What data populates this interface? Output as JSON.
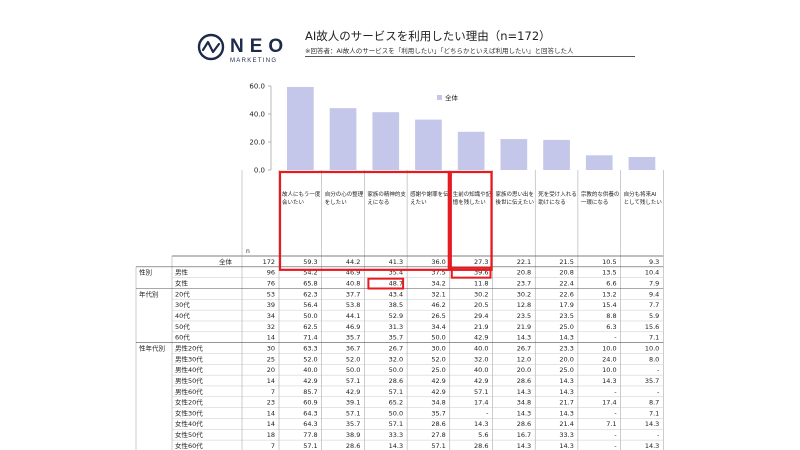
{
  "brand": {
    "name": "NEO",
    "sub": "MARKETING"
  },
  "header": {
    "title": "AI故人のサービスを利用したい理由（n=172）",
    "note": "※回答者：AI故人のサービスを「利用したい」「どちらかといえば利用したい」と回答した人"
  },
  "colors": {
    "bar": "#c5c7ea",
    "highlight": "#e8191f",
    "text": "#222222",
    "grid": "#999999"
  },
  "table_labels": {
    "n_header": "n"
  },
  "chart_data": {
    "type": "bar",
    "categories": [
      "故人にもう一度会いたい",
      "自分の心の整理をしたい",
      "家族の精神的支えになる",
      "感謝や謝罪を伝えたい",
      "生前の知識や記憶を残したい",
      "家族の思い出を後世に伝えたい",
      "死を受け入れる助けになる",
      "宗教的な供養の一環になる",
      "自分も将来AIとして残したい"
    ],
    "values": [
      59.3,
      44.2,
      41.3,
      36.0,
      27.3,
      22.1,
      21.5,
      10.5,
      9.3
    ],
    "legend": "全体",
    "legend_position": "top-right",
    "ylim": [
      0,
      60
    ],
    "yticks": [
      "60.0",
      "40.0",
      "20.0",
      "0.0"
    ],
    "groups": [
      "",
      "性別",
      "",
      "年代別",
      "",
      "",
      "",
      "",
      "性年代別"
    ],
    "rows": [
      {
        "group": "",
        "label": "全体",
        "n": "172",
        "values": [
          "59.3",
          "44.2",
          "41.3",
          "36.0",
          "27.3",
          "22.1",
          "21.5",
          "10.5",
          "9.3"
        ]
      },
      {
        "group": "性別",
        "label": "男性",
        "n": "96",
        "values": [
          "54.2",
          "46.9",
          "35.4",
          "37.5",
          "39.6",
          "20.8",
          "20.8",
          "13.5",
          "10.4"
        ]
      },
      {
        "group": "",
        "label": "女性",
        "n": "76",
        "values": [
          "65.8",
          "40.8",
          "48.7",
          "34.2",
          "11.8",
          "23.7",
          "22.4",
          "6.6",
          "7.9"
        ]
      },
      {
        "group": "年代別",
        "label": "20代",
        "n": "53",
        "values": [
          "62.3",
          "37.7",
          "43.4",
          "32.1",
          "30.2",
          "30.2",
          "22.6",
          "13.2",
          "9.4"
        ]
      },
      {
        "group": "",
        "label": "30代",
        "n": "39",
        "values": [
          "56.4",
          "53.8",
          "38.5",
          "46.2",
          "20.5",
          "12.8",
          "17.9",
          "15.4",
          "7.7"
        ]
      },
      {
        "group": "",
        "label": "40代",
        "n": "34",
        "values": [
          "50.0",
          "44.1",
          "52.9",
          "26.5",
          "29.4",
          "23.5",
          "23.5",
          "8.8",
          "5.9"
        ]
      },
      {
        "group": "",
        "label": "50代",
        "n": "32",
        "values": [
          "62.5",
          "46.9",
          "31.3",
          "34.4",
          "21.9",
          "21.9",
          "25.0",
          "6.3",
          "15.6"
        ]
      },
      {
        "group": "",
        "label": "60代",
        "n": "14",
        "values": [
          "71.4",
          "35.7",
          "35.7",
          "50.0",
          "42.9",
          "14.3",
          "14.3",
          "-",
          "7.1"
        ]
      },
      {
        "group": "性年代別",
        "label": "男性20代",
        "n": "30",
        "values": [
          "63.3",
          "36.7",
          "26.7",
          "30.0",
          "40.0",
          "26.7",
          "23.3",
          "10.0",
          "10.0"
        ]
      },
      {
        "group": "",
        "label": "男性30代",
        "n": "25",
        "values": [
          "52.0",
          "52.0",
          "32.0",
          "52.0",
          "32.0",
          "12.0",
          "20.0",
          "24.0",
          "8.0"
        ]
      },
      {
        "group": "",
        "label": "男性40代",
        "n": "20",
        "values": [
          "40.0",
          "50.0",
          "50.0",
          "25.0",
          "40.0",
          "20.0",
          "25.0",
          "10.0",
          "-"
        ]
      },
      {
        "group": "",
        "label": "男性50代",
        "n": "14",
        "values": [
          "42.9",
          "57.1",
          "28.6",
          "42.9",
          "42.9",
          "28.6",
          "14.3",
          "14.3",
          "35.7"
        ]
      },
      {
        "group": "",
        "label": "男性60代",
        "n": "7",
        "values": [
          "85.7",
          "42.9",
          "57.1",
          "42.9",
          "57.1",
          "14.3",
          "14.3",
          "-",
          "-"
        ]
      },
      {
        "group": "",
        "label": "女性20代",
        "n": "23",
        "values": [
          "60.9",
          "39.1",
          "65.2",
          "34.8",
          "17.4",
          "34.8",
          "21.7",
          "17.4",
          "8.7"
        ]
      },
      {
        "group": "",
        "label": "女性30代",
        "n": "14",
        "values": [
          "64.3",
          "57.1",
          "50.0",
          "35.7",
          "-",
          "14.3",
          "14.3",
          "-",
          "7.1"
        ]
      },
      {
        "group": "",
        "label": "女性40代",
        "n": "14",
        "values": [
          "64.3",
          "35.7",
          "57.1",
          "28.6",
          "14.3",
          "28.6",
          "21.4",
          "7.1",
          "14.3"
        ]
      },
      {
        "group": "",
        "label": "女性50代",
        "n": "18",
        "values": [
          "77.8",
          "38.9",
          "33.3",
          "27.8",
          "5.6",
          "16.7",
          "33.3",
          "-",
          "-"
        ]
      },
      {
        "group": "",
        "label": "女性60代",
        "n": "7",
        "values": [
          "57.1",
          "28.6",
          "14.3",
          "57.1",
          "28.6",
          "14.3",
          "14.3",
          "-",
          "14.3"
        ]
      }
    ]
  }
}
